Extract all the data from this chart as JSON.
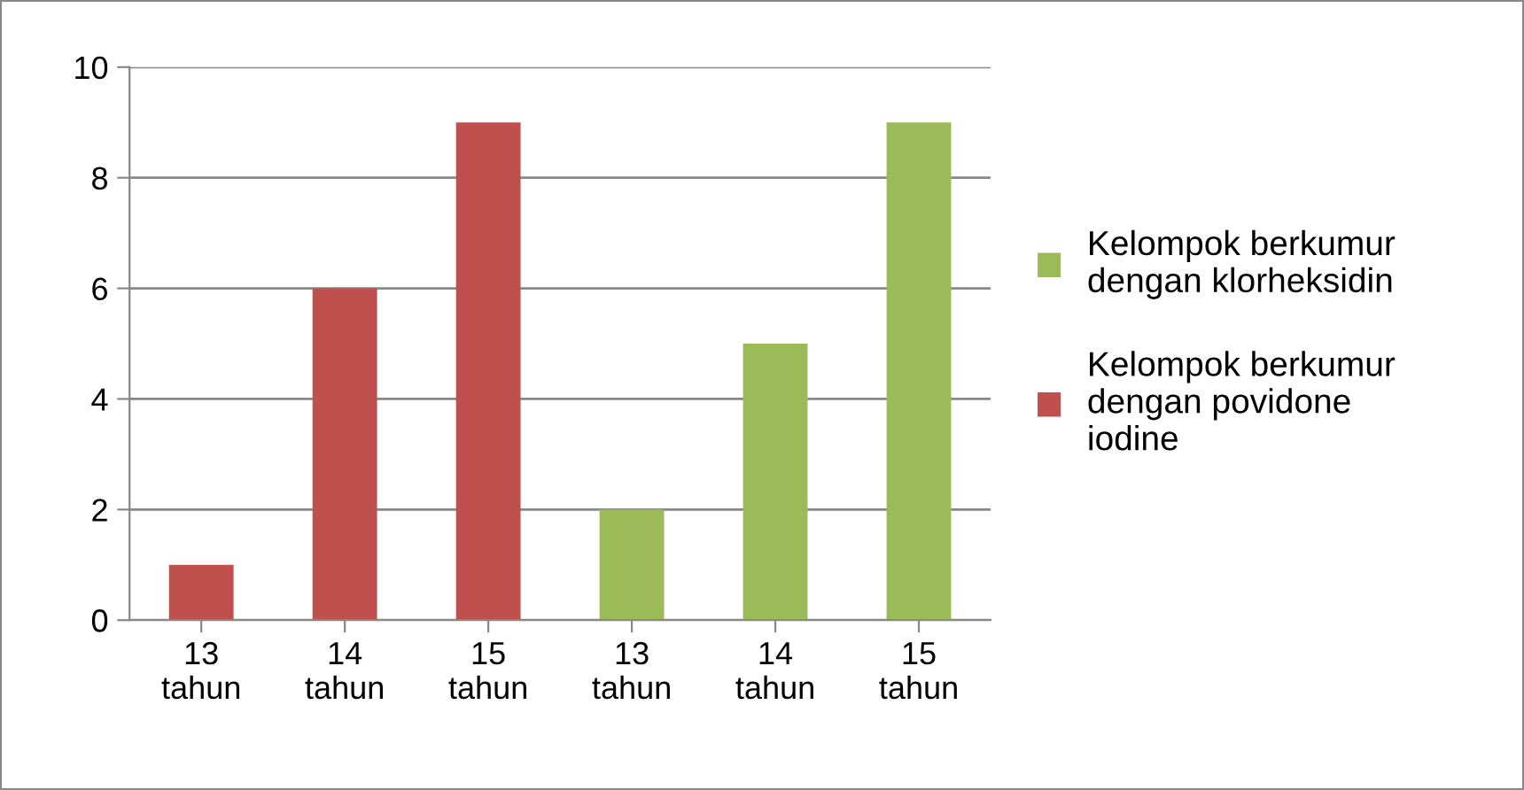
{
  "chart_data": {
    "type": "bar",
    "categories": [
      "13\ntahun",
      "14\ntahun",
      "15\ntahun",
      "13\ntahun",
      "14\ntahun",
      "15\ntahun"
    ],
    "series": [
      {
        "name": "Kelompok berkumur dengan klorheksidin",
        "color": "#9bbb59",
        "values": [
          null,
          null,
          null,
          2,
          5,
          9
        ]
      },
      {
        "name": "Kelompok berkumur dengan povidone iodine",
        "color": "#c0504d",
        "values": [
          1,
          6,
          9,
          null,
          null,
          null
        ]
      }
    ],
    "ylim": [
      0,
      10
    ],
    "yticks": [
      0,
      2,
      4,
      6,
      8,
      10
    ],
    "grid": "y",
    "legend": "right"
  }
}
